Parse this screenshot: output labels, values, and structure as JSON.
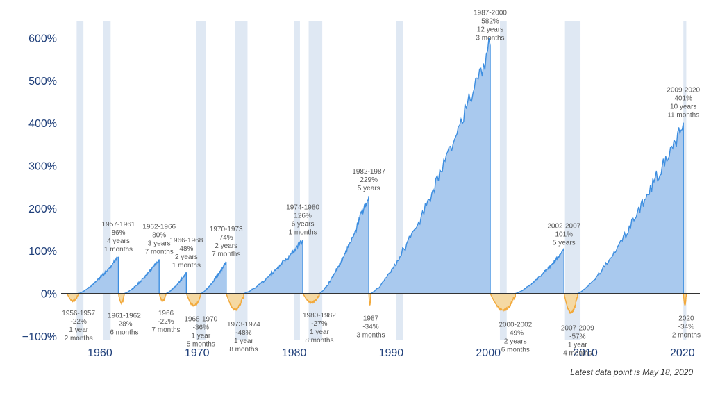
{
  "chart_data": {
    "type": "area",
    "title": "",
    "xlabel": "",
    "ylabel": "",
    "xlim": [
      1956.0,
      2021.8
    ],
    "ylim": [
      -110,
      640
    ],
    "y_ticks": [
      {
        "value": -100,
        "label": "−100%"
      },
      {
        "value": 0,
        "label": "0%"
      },
      {
        "value": 100,
        "label": "100%"
      },
      {
        "value": 200,
        "label": "200%"
      },
      {
        "value": 300,
        "label": "300%"
      },
      {
        "value": 400,
        "label": "400%"
      },
      {
        "value": 500,
        "label": "500%"
      },
      {
        "value": 600,
        "label": "600%"
      }
    ],
    "x_ticks": [
      {
        "value": 1960,
        "label": "1960"
      },
      {
        "value": 1970,
        "label": "1970"
      },
      {
        "value": 1980,
        "label": "1980"
      },
      {
        "value": 1990,
        "label": "1990"
      },
      {
        "value": 2000,
        "label": "2000"
      },
      {
        "value": 2010,
        "label": "2010"
      },
      {
        "value": 2020,
        "label": "2020"
      }
    ],
    "colors": {
      "bull_fill": "#a9c9ee",
      "bull_line": "#3d8ee0",
      "bear_fill": "#f5d9a3",
      "bear_line": "#f2a93b",
      "recession": "#dfe8f3",
      "axis": "#333333"
    },
    "recessions": [
      [
        1957.6,
        1958.3
      ],
      [
        1960.3,
        1961.1
      ],
      [
        1969.9,
        1970.9
      ],
      [
        1973.9,
        1975.2
      ],
      [
        1980.0,
        1980.6
      ],
      [
        1981.5,
        1982.9
      ],
      [
        1990.5,
        1991.2
      ],
      [
        2001.2,
        2001.9
      ],
      [
        2007.9,
        2009.5
      ],
      [
        2020.1,
        2020.4
      ]
    ],
    "bull_markets": [
      {
        "start": 1957.8,
        "end": 1961.9,
        "peak": 86,
        "label": [
          "1957-1961",
          "86%",
          "4 years",
          "1 months"
        ]
      },
      {
        "start": 1962.5,
        "end": 1966.1,
        "peak": 80,
        "label": [
          "1962-1966",
          "80%",
          "3 years",
          "7 months"
        ]
      },
      {
        "start": 1966.8,
        "end": 1968.9,
        "peak": 48,
        "label": [
          "1966-1968",
          "48%",
          "2 years",
          "1 months"
        ]
      },
      {
        "start": 1970.4,
        "end": 1973.0,
        "peak": 74,
        "label": [
          "1970-1973",
          "74%",
          "2 years",
          "7 months"
        ]
      },
      {
        "start": 1974.8,
        "end": 1980.9,
        "peak": 126,
        "label": [
          "1974-1980",
          "126%",
          "6 years",
          "1 months"
        ]
      },
      {
        "start": 1982.6,
        "end": 1987.7,
        "peak": 229,
        "label": [
          "1982-1987",
          "229%",
          "5 years"
        ]
      },
      {
        "start": 1987.9,
        "end": 2000.2,
        "peak": 582,
        "label": [
          "1987-2000",
          "582%",
          "12 years",
          "3 months"
        ]
      },
      {
        "start": 2002.8,
        "end": 2007.8,
        "peak": 101,
        "label": [
          "2002-2007",
          "101%",
          "5 years"
        ]
      },
      {
        "start": 2009.2,
        "end": 2020.1,
        "peak": 401,
        "label": [
          "2009-2020",
          "401%",
          "10 years",
          "11 months"
        ]
      }
    ],
    "bear_markets": [
      {
        "start": 1956.6,
        "end": 1957.8,
        "trough": -22,
        "label": [
          "1956-1957",
          "-22%",
          "1 year",
          "2 months"
        ]
      },
      {
        "start": 1961.9,
        "end": 1962.5,
        "trough": -28,
        "label": [
          "1961-1962",
          "-28%",
          "6 months"
        ]
      },
      {
        "start": 1966.1,
        "end": 1966.8,
        "trough": -22,
        "label": [
          "1966",
          "-22%",
          "7 months"
        ]
      },
      {
        "start": 1968.9,
        "end": 1970.4,
        "trough": -36,
        "label": [
          "1968-1970",
          "-36%",
          "1 year",
          "5 months"
        ]
      },
      {
        "start": 1973.0,
        "end": 1974.8,
        "trough": -48,
        "label": [
          "1973-1974",
          "-48%",
          "1 year",
          "8 months"
        ]
      },
      {
        "start": 1980.9,
        "end": 1982.6,
        "trough": -27,
        "label": [
          "1980-1982",
          "-27%",
          "1 year",
          "8 months"
        ]
      },
      {
        "start": 1987.7,
        "end": 1987.9,
        "trough": -34,
        "label": [
          "1987",
          "-34%",
          "3 months"
        ]
      },
      {
        "start": 2000.2,
        "end": 2002.8,
        "trough": -49,
        "label": [
          "2000-2002",
          "-49%",
          "2 years",
          "6 months"
        ]
      },
      {
        "start": 2007.8,
        "end": 2009.2,
        "trough": -57,
        "label": [
          "2007-2009",
          "-57%",
          "1 year",
          "4 months"
        ]
      },
      {
        "start": 2020.1,
        "end": 2020.4,
        "trough": -34,
        "label": [
          "2020",
          "-34%",
          "2 months"
        ]
      }
    ],
    "annotation": "Latest data point is May 18, 2020"
  }
}
